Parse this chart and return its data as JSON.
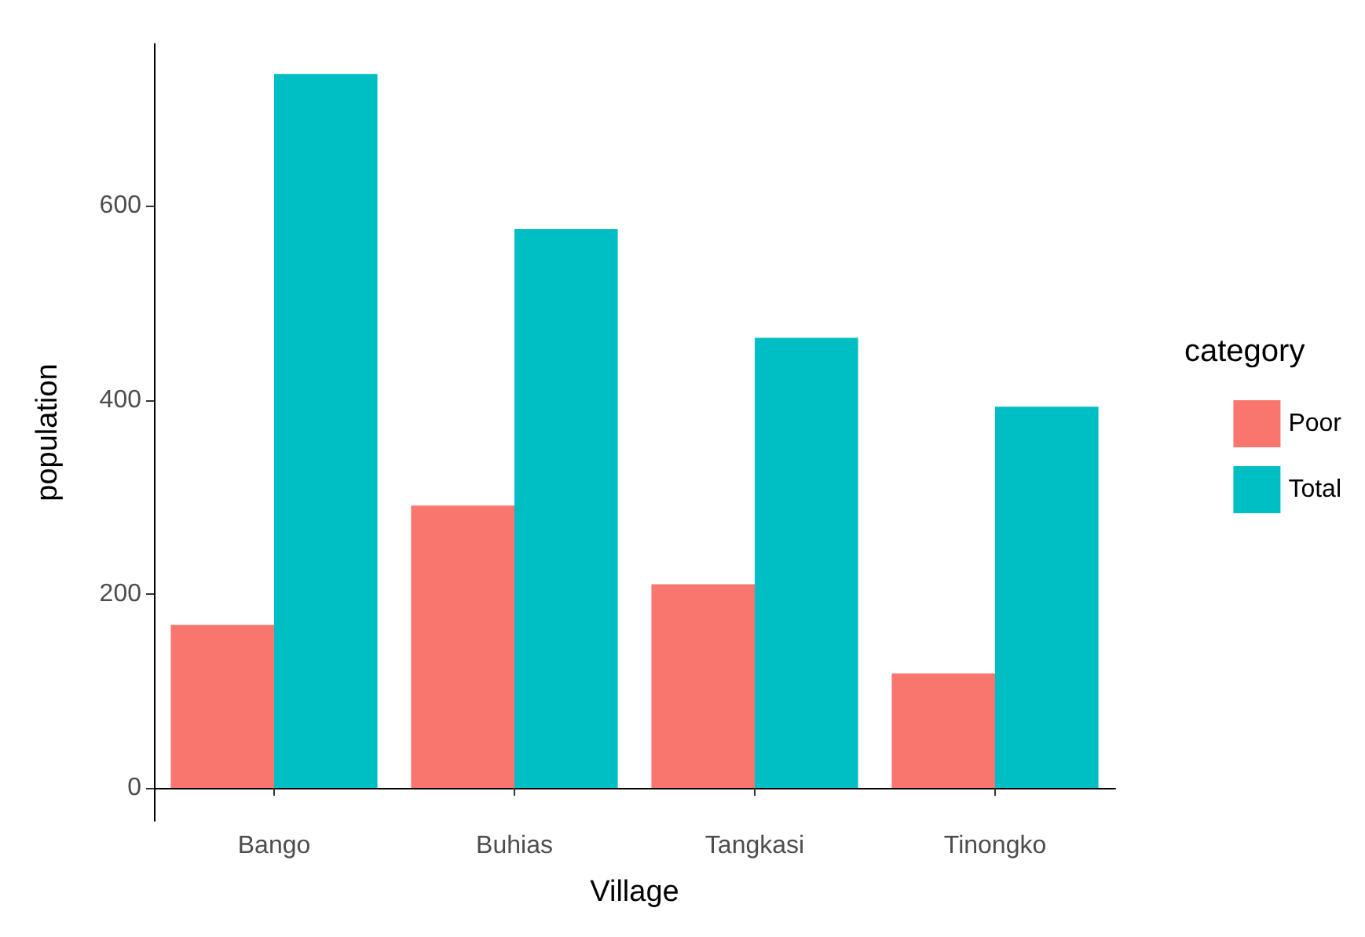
{
  "chart_data": {
    "type": "bar",
    "xlabel": "Village",
    "ylabel": "population",
    "legend_title": "category",
    "categories": [
      "Bango",
      "Buhias",
      "Tangkasi",
      "Tinongko"
    ],
    "series": [
      {
        "name": "Poor",
        "color": "#f8766d",
        "values": [
          168,
          291,
          210,
          118
        ]
      },
      {
        "name": "Total",
        "color": "#00bfc4",
        "values": [
          736,
          576,
          464,
          393
        ]
      }
    ],
    "ylim": [
      -34,
      767
    ],
    "yticks": [
      0,
      200,
      400,
      600
    ],
    "grid": false,
    "legend": "right"
  }
}
